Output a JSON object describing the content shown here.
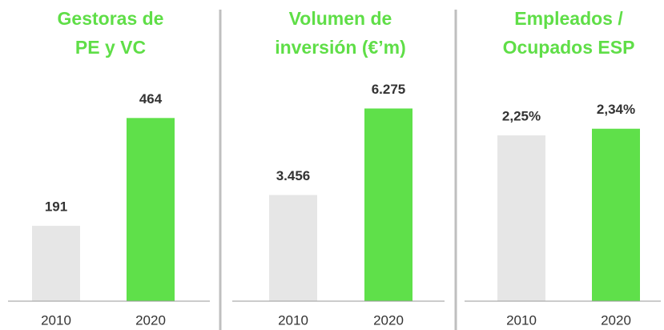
{
  "chart_data": [
    {
      "type": "bar",
      "title": [
        "Gestoras de",
        "PE y VC"
      ],
      "categories": [
        "2010",
        "2020"
      ],
      "values": [
        191,
        464
      ],
      "colors": [
        "#e6e6e6",
        "#5fe04a"
      ],
      "ylim": [
        0,
        560
      ]
    },
    {
      "type": "bar",
      "title": [
        "Volumen de",
        "inversión (€’m)"
      ],
      "categories": [
        "2010",
        "2020"
      ],
      "values": [
        3456,
        6275
      ],
      "value_labels": [
        "3.456",
        "6.275"
      ],
      "colors": [
        "#e6e6e6",
        "#5fe04a"
      ],
      "ylim": [
        0,
        7200
      ]
    },
    {
      "type": "bar",
      "title": [
        "Empleados /",
        "Ocupados ESP"
      ],
      "categories": [
        "2010",
        "2020"
      ],
      "values": [
        2.25,
        2.34
      ],
      "value_labels": [
        "2,25%",
        "2,34%"
      ],
      "colors": [
        "#e6e6e6",
        "#5fe04a"
      ],
      "ylim": [
        0,
        3
      ]
    }
  ]
}
